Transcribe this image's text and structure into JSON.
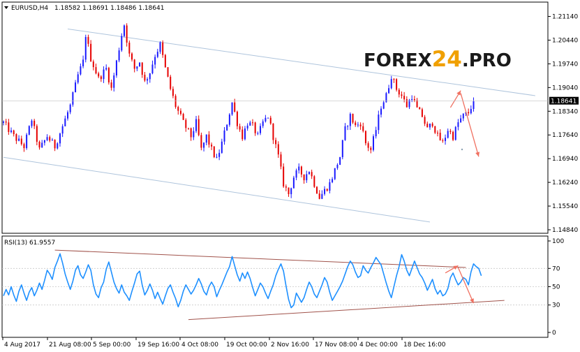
{
  "header": {
    "symbol": "EURUSD,H4",
    "ohlc": "1.18582 1.18691 1.18486 1.18641"
  },
  "logo": {
    "part1": "FOREX",
    "part2": "24",
    "part3": ".PRO"
  },
  "rsi_header": "RSI(13) 61.9557",
  "colors": {
    "bull": "#1a1aff",
    "bear": "#e60000",
    "channel": "#aec4dc",
    "rsi_line": "#1e90ff",
    "rsi_trend": "#a0524a",
    "arrow": "#f07060",
    "logo_dark": "#1a1a1a",
    "logo_accent": "#f0a000"
  },
  "chart_data": [
    {
      "type": "candlestick",
      "symbol": "EURUSD",
      "timeframe": "H4",
      "ylim": [
        1.1484,
        1.2146
      ],
      "yticks": [
        "1.21140",
        "1.20440",
        "1.19740",
        "1.19040",
        "1.18340",
        "1.17640",
        "1.16940",
        "1.16240",
        "1.15540",
        "1.14840"
      ],
      "current_price": "1.18641",
      "x_labels": [
        "4 Aug 2017",
        "21 Aug 08:00",
        "5 Sep 00:00",
        "19 Sep 16:00",
        "4 Oct 08:00",
        "19 Oct 00:00",
        "2 Nov 16:00",
        "17 Nov 08:00",
        "4 Dec 00:00",
        "18 Dec 16:00"
      ],
      "price_path": [
        [
          0,
          1.18
        ],
        [
          4,
          1.176
        ],
        [
          8,
          1.173
        ],
        [
          11,
          1.181
        ],
        [
          14,
          1.172
        ],
        [
          17,
          1.176
        ],
        [
          20,
          1.173
        ],
        [
          23,
          1.179
        ],
        [
          26,
          1.185
        ],
        [
          29,
          1.194
        ],
        [
          31,
          1.198
        ],
        [
          32,
          1.206
        ],
        [
          34,
          1.199
        ],
        [
          37,
          1.193
        ],
        [
          40,
          1.196
        ],
        [
          42,
          1.19
        ],
        [
          44,
          1.198
        ],
        [
          46,
          1.206
        ],
        [
          47,
          1.209
        ],
        [
          49,
          1.2
        ],
        [
          51,
          1.196
        ],
        [
          53,
          1.198
        ],
        [
          55,
          1.192
        ],
        [
          57,
          1.195
        ],
        [
          59,
          1.2
        ],
        [
          61,
          1.203
        ],
        [
          63,
          1.196
        ],
        [
          65,
          1.19
        ],
        [
          67,
          1.185
        ],
        [
          70,
          1.18
        ],
        [
          73,
          1.176
        ],
        [
          75,
          1.18
        ],
        [
          77,
          1.172
        ],
        [
          79,
          1.176
        ],
        [
          81,
          1.172
        ],
        [
          83,
          1.169
        ],
        [
          85,
          1.174
        ],
        [
          87,
          1.18
        ],
        [
          89,
          1.186
        ],
        [
          91,
          1.18
        ],
        [
          93,
          1.176
        ],
        [
          95,
          1.18
        ],
        [
          97,
          1.179
        ],
        [
          99,
          1.176
        ],
        [
          101,
          1.18
        ],
        [
          103,
          1.182
        ],
        [
          105,
          1.176
        ],
        [
          107,
          1.17
        ],
        [
          109,
          1.162
        ],
        [
          111,
          1.159
        ],
        [
          113,
          1.164
        ],
        [
          115,
          1.166
        ],
        [
          117,
          1.164
        ],
        [
          119,
          1.166
        ],
        [
          121,
          1.162
        ],
        [
          123,
          1.158
        ],
        [
          125,
          1.16
        ],
        [
          127,
          1.162
        ],
        [
          129,
          1.166
        ],
        [
          131,
          1.17
        ],
        [
          133,
          1.178
        ],
        [
          135,
          1.182
        ],
        [
          137,
          1.179
        ],
        [
          139,
          1.18
        ],
        [
          141,
          1.174
        ],
        [
          143,
          1.172
        ],
        [
          145,
          1.178
        ],
        [
          147,
          1.185
        ],
        [
          149,
          1.188
        ],
        [
          151,
          1.194
        ],
        [
          153,
          1.19
        ],
        [
          155,
          1.188
        ],
        [
          157,
          1.185
        ],
        [
          159,
          1.188
        ],
        [
          161,
          1.184
        ],
        [
          163,
          1.182
        ],
        [
          165,
          1.178
        ],
        [
          167,
          1.18
        ],
        [
          169,
          1.176
        ],
        [
          171,
          1.174
        ],
        [
          173,
          1.178
        ],
        [
          175,
          1.176
        ],
        [
          177,
          1.18
        ],
        [
          179,
          1.182
        ],
        [
          181,
          1.183
        ],
        [
          183,
          1.1864
        ]
      ],
      "channel_lines": [
        {
          "from": [
            25,
            1.2077
          ],
          "to": [
            207,
            1.188
          ]
        },
        {
          "from": [
            0,
            1.1698
          ],
          "to": [
            166,
            1.1507
          ]
        }
      ],
      "forecast_arrows": [
        {
          "from": [
            174,
            1.1845
          ],
          "to": [
            178,
            1.1895
          ]
        },
        {
          "from": [
            178,
            1.1887
          ],
          "to": [
            185,
            1.17
          ]
        }
      ]
    },
    {
      "type": "line",
      "indicator": "RSI",
      "period": 13,
      "last_value": 61.9557,
      "ylim": [
        0,
        100
      ],
      "yticks": [
        "100",
        "70",
        "50",
        "30",
        "0"
      ],
      "levels": [
        70,
        50,
        30
      ],
      "values": [
        40,
        47,
        41,
        50,
        41,
        34,
        45,
        52,
        43,
        35,
        44,
        49,
        40,
        46,
        54,
        47,
        57,
        68,
        64,
        58,
        71,
        78,
        86,
        76,
        64,
        55,
        47,
        56,
        68,
        73,
        63,
        59,
        66,
        74,
        68,
        52,
        42,
        38,
        49,
        55,
        69,
        77,
        66,
        55,
        48,
        43,
        52,
        44,
        40,
        35,
        45,
        54,
        64,
        67,
        52,
        41,
        46,
        53,
        46,
        37,
        44,
        37,
        31,
        40,
        48,
        52,
        44,
        37,
        28,
        35,
        45,
        52,
        47,
        42,
        46,
        52,
        59,
        53,
        45,
        41,
        50,
        55,
        50,
        39,
        46,
        52,
        59,
        66,
        72,
        83,
        73,
        63,
        56,
        65,
        59,
        66,
        59,
        49,
        40,
        47,
        54,
        50,
        43,
        37,
        45,
        52,
        62,
        69,
        75,
        67,
        51,
        36,
        27,
        30,
        43,
        38,
        33,
        38,
        47,
        55,
        50,
        42,
        38,
        45,
        52,
        60,
        55,
        44,
        35,
        40,
        45,
        50,
        56,
        64,
        72,
        78,
        74,
        66,
        60,
        62,
        73,
        68,
        65,
        71,
        76,
        82,
        78,
        74,
        64,
        54,
        45,
        38,
        50,
        62,
        72,
        85,
        78,
        68,
        62,
        70,
        78,
        71,
        64,
        60,
        54,
        46,
        52,
        58,
        48,
        42,
        46,
        40,
        42,
        48,
        60,
        65,
        58,
        52,
        55,
        60,
        58,
        52,
        66,
        75,
        72,
        70,
        62
      ],
      "trend_lines": [
        {
          "from": [
            20,
            90
          ],
          "to": [
            180,
            71
          ]
        },
        {
          "from": [
            72,
            14
          ],
          "to": [
            195,
            35
          ]
        }
      ],
      "forecast_arrows": [
        {
          "from": [
            172,
            65
          ],
          "to": [
            177,
            73
          ]
        },
        {
          "from": [
            177,
            71
          ],
          "to": [
            183,
            32
          ]
        }
      ]
    }
  ]
}
